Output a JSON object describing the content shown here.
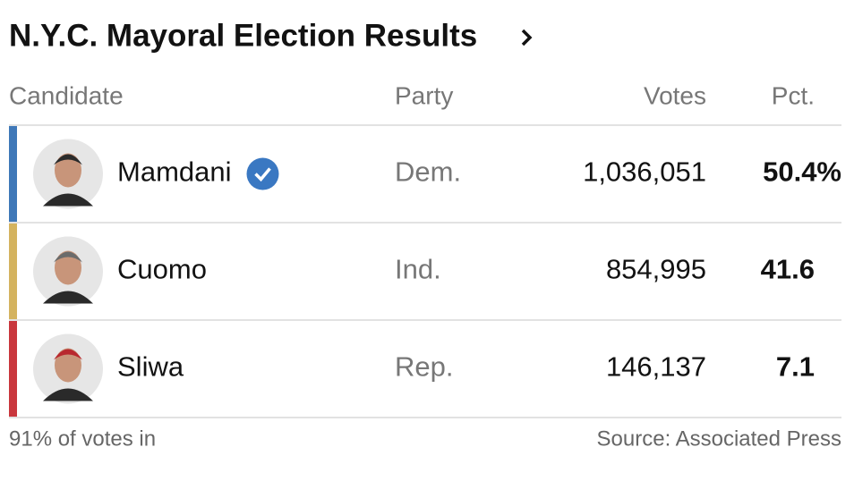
{
  "header": {
    "title": "N.Y.C. Mayoral Election Results"
  },
  "table": {
    "columns": [
      "Candidate",
      "Party",
      "Votes",
      "Pct."
    ],
    "rows": [
      {
        "name": "Mamdani",
        "party": "Dem.",
        "votes": "1,036,051",
        "pct": "50.4%",
        "color": "#3f78b8",
        "winner": true
      },
      {
        "name": "Cuomo",
        "party": "Ind.",
        "votes": "854,995",
        "pct": "41.6",
        "color": "#d4b35f",
        "winner": false
      },
      {
        "name": "Sliwa",
        "party": "Rep.",
        "votes": "146,137",
        "pct": "7.1",
        "color": "#c9373d",
        "winner": false
      }
    ]
  },
  "footer": {
    "left": "91% of votes in",
    "right": "Source: Associated Press"
  }
}
